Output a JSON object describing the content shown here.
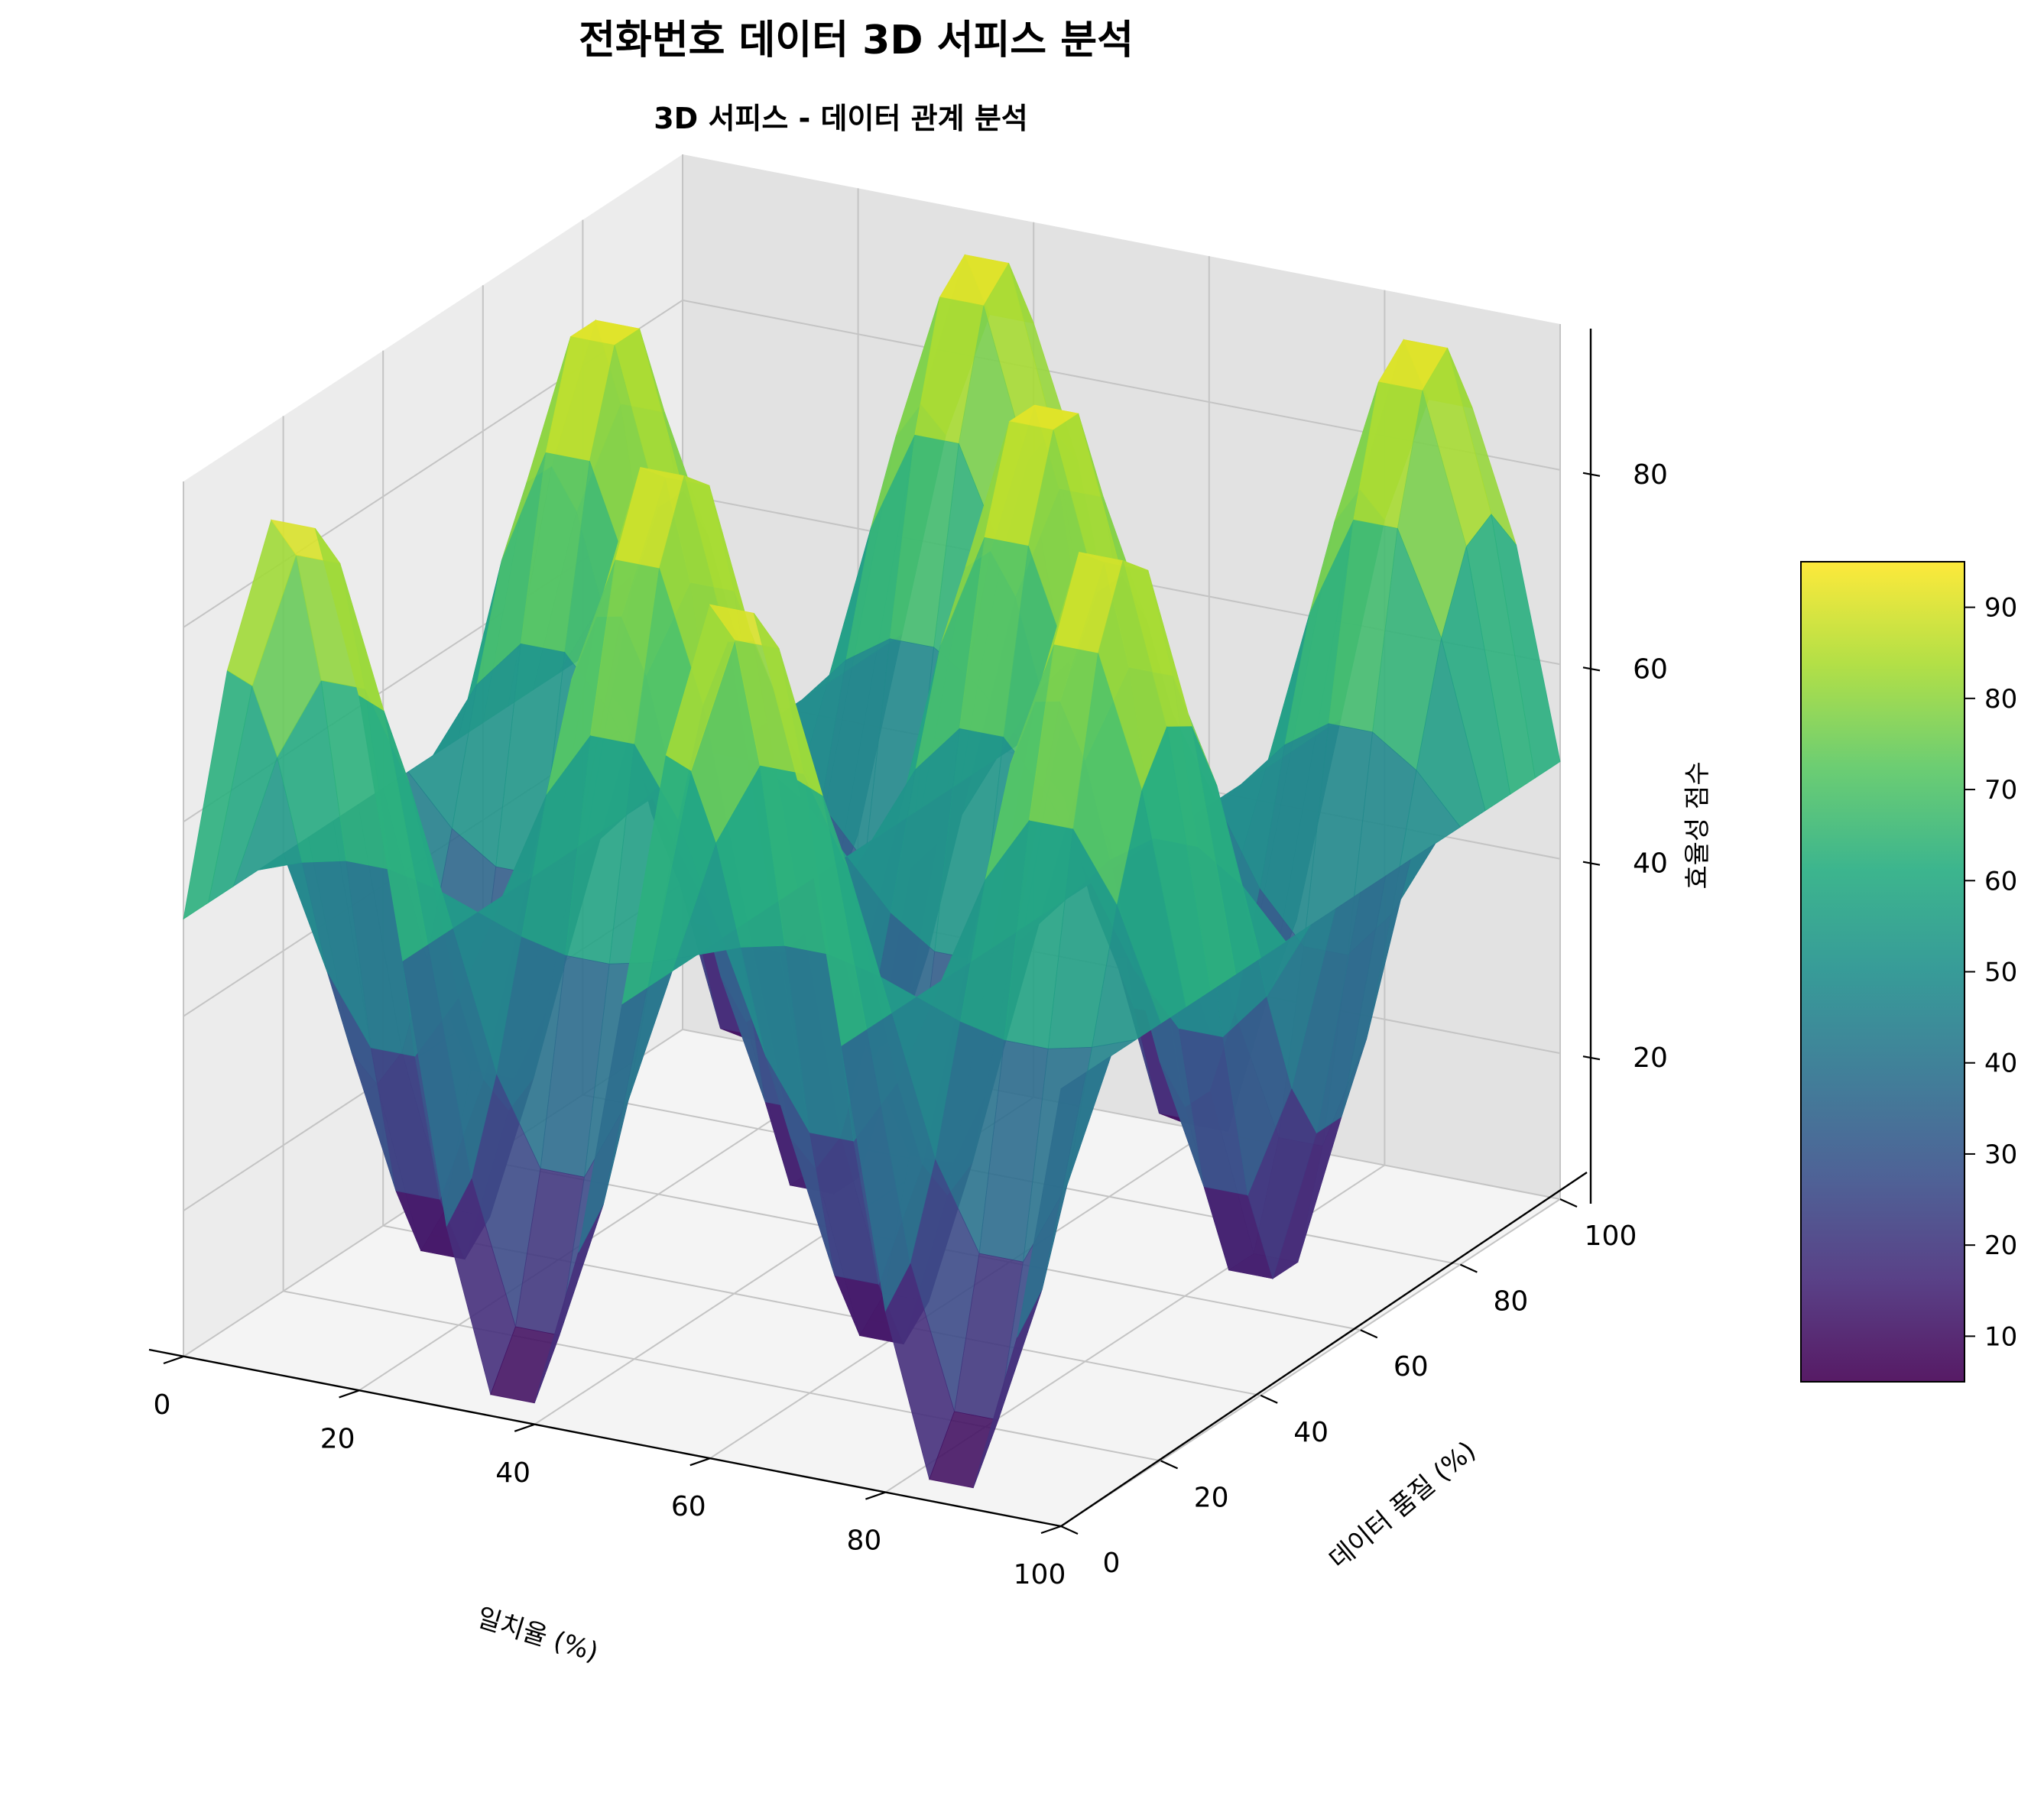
{
  "chart_data": {
    "type": "surface",
    "title": "전화번호 데이터 3D 서피스 분석",
    "subtitle": "3D 서피스 - 데이터 관계 분석",
    "xlabel": "일치율 (%)",
    "ylabel": "데이터 품질 (%)",
    "zlabel": "효율성 점수",
    "x_ticks": [
      0,
      20,
      40,
      60,
      80,
      100
    ],
    "y_ticks": [
      0,
      20,
      40,
      60,
      80,
      100
    ],
    "z_ticks": [
      20,
      40,
      60,
      80
    ],
    "xlim": [
      0,
      100
    ],
    "ylim": [
      0,
      100
    ],
    "zlim": [
      5,
      95
    ],
    "grid": true,
    "colormap": "viridis",
    "colorbar": {
      "ticks": [
        10,
        20,
        30,
        40,
        50,
        60,
        70,
        80,
        90
      ],
      "range": [
        5,
        95
      ]
    },
    "surface": {
      "grid_size": 21,
      "function": "50 + 45 * sin(x/100 * 2π * 2) * cos(y/100 * 2π * 1.6)",
      "x_range": [
        0,
        100
      ],
      "y_range": [
        0,
        100
      ]
    }
  },
  "colors": {
    "background": "#ffffff",
    "pane_floor": "#f4f4f4",
    "pane_left": "#ececec",
    "pane_back": "#e2e2e2",
    "grid": "#c4c4c4",
    "axis": "#000000",
    "text": "#000000"
  }
}
